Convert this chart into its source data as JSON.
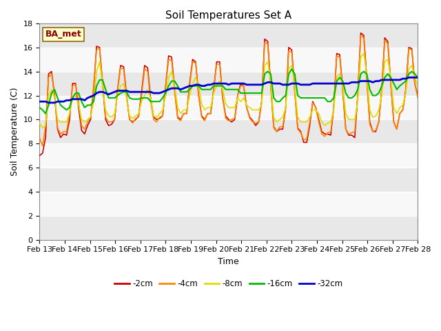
{
  "title": "Soil Temperatures Set A",
  "xlabel": "Time",
  "ylabel": "Soil Temperature (C)",
  "annotation": "BA_met",
  "ylim": [
    0,
    18
  ],
  "yticks": [
    0,
    2,
    4,
    6,
    8,
    10,
    12,
    14,
    16,
    18
  ],
  "xtick_labels": [
    "Feb 13",
    "Feb 14",
    "Feb 15",
    "Feb 16",
    "Feb 17",
    "Feb 18",
    "Feb 19",
    "Feb 20",
    "Feb 21",
    "Feb 22",
    "Feb 23",
    "Feb 24",
    "Feb 25",
    "Feb 26",
    "Feb 27",
    "Feb 28"
  ],
  "series_colors": {
    "-2cm": "#cc0000",
    "-4cm": "#ff8800",
    "-8cm": "#dddd00",
    "-16cm": "#00bb00",
    "-32cm": "#0000cc"
  },
  "series_linewidths": {
    "-2cm": 1.2,
    "-4cm": 1.2,
    "-8cm": 1.2,
    "-16cm": 1.5,
    "-32cm": 2.0
  },
  "legend_order": [
    "-2cm",
    "-4cm",
    "-8cm",
    "-16cm",
    "-32cm"
  ],
  "bg_upper": "#e8e8e8",
  "bg_lower": "#f5f5f5",
  "band_boundary": 8,
  "fig_bg": "#ffffff",
  "title_fontsize": 11,
  "label_fontsize": 9,
  "tick_fontsize": 8
}
